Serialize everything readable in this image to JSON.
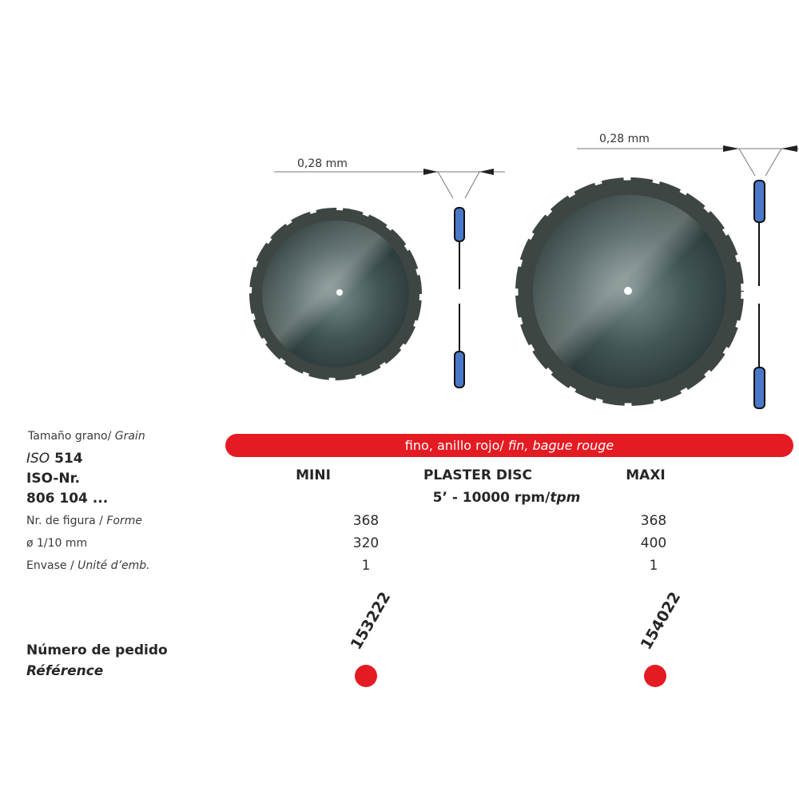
{
  "dimensions": {
    "mini_thickness": "0,28 mm",
    "maxi_thickness": "0,28 mm"
  },
  "grain_bar": {
    "text_es": "fino, anillo rojo/ ",
    "text_fr": "fin, bague rouge",
    "color": "#e41b23"
  },
  "labels": {
    "grain_es": "Tamaño grano/ ",
    "grain_fr": "Grain",
    "iso_label": "ISO",
    "iso_value": "514",
    "iso_nr": "ISO-Nr.",
    "iso_code": "806 104 ...",
    "figure_es": "Nr. de figura / ",
    "figure_fr": "Forme",
    "diameter": "ø 1/10 mm",
    "pack_es": "Envase / ",
    "pack_fr": "Unité d’emb.",
    "order_es": "Número de pedido",
    "order_fr": "Référence"
  },
  "headers": {
    "mini": "MINI",
    "product": "PLASTER DISC",
    "maxi": "MAXI",
    "speed": "5’ - 10000 rpm/",
    "speed_unit_fr": "tpm"
  },
  "products": [
    {
      "name": "MINI",
      "figure": "368",
      "diameter": "320",
      "pack": "1",
      "reference": "153222"
    },
    {
      "name": "MAXI",
      "figure": "368",
      "diameter": "400",
      "pack": "1",
      "reference": "154022"
    }
  ],
  "colors": {
    "accent_red": "#e41b23",
    "profile_blue": "#4a78c8"
  }
}
